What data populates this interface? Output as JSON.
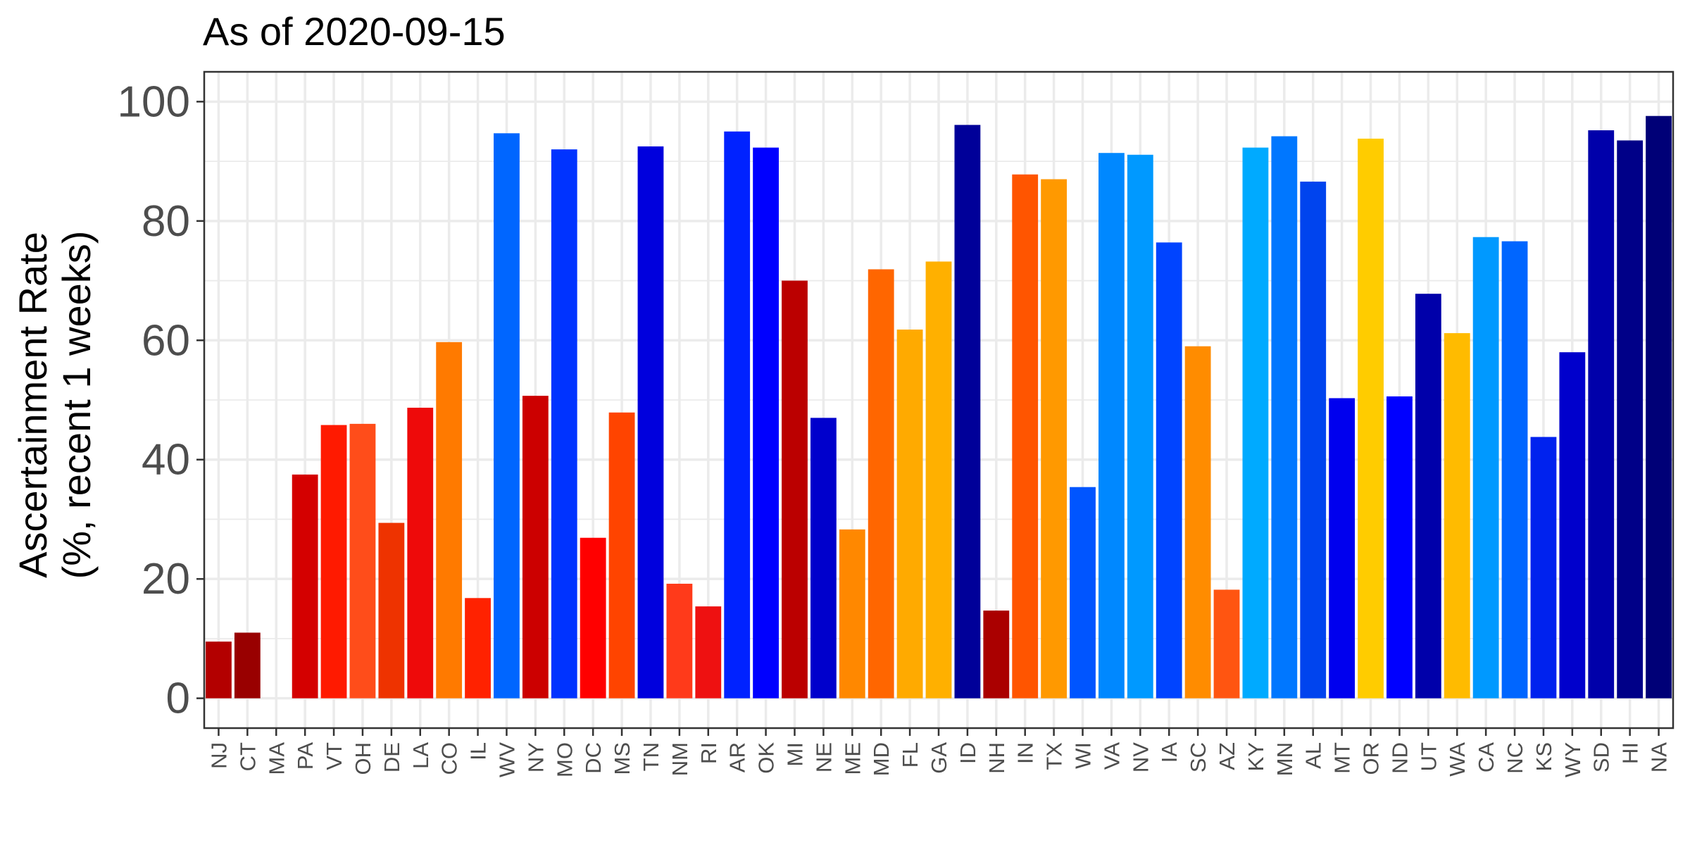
{
  "chart_data": {
    "type": "bar",
    "title": "As of 2020-09-15",
    "xlabel": "",
    "ylabel_lines": [
      "Ascertainment Rate",
      "(%, recent 1 weeks)"
    ],
    "ylim": [
      -5,
      105
    ],
    "yticks": [
      0,
      20,
      40,
      60,
      80,
      100
    ],
    "yminor": [
      10,
      30,
      50,
      70,
      90
    ],
    "grid": true,
    "categories": [
      "NJ",
      "CT",
      "MA",
      "PA",
      "VT",
      "OH",
      "DE",
      "LA",
      "CO",
      "IL",
      "WV",
      "NY",
      "MO",
      "DC",
      "MS",
      "TN",
      "NM",
      "RI",
      "AR",
      "OK",
      "MI",
      "NE",
      "ME",
      "MD",
      "FL",
      "GA",
      "ID",
      "NH",
      "IN",
      "TX",
      "WI",
      "VA",
      "NV",
      "IA",
      "SC",
      "AZ",
      "KY",
      "MN",
      "AL",
      "MT",
      "OR",
      "ND",
      "UT",
      "WA",
      "CA",
      "NC",
      "KS",
      "WY",
      "SD",
      "HI",
      "NA"
    ],
    "values": [
      9.5,
      11,
      0,
      37.5,
      45.8,
      46,
      29.4,
      48.7,
      59.7,
      16.8,
      94.7,
      50.7,
      92,
      26.9,
      47.9,
      92.5,
      19.2,
      15.4,
      95,
      92.3,
      70,
      47,
      28.3,
      71.9,
      61.8,
      73.2,
      96.1,
      14.7,
      87.8,
      87,
      35.4,
      91.4,
      91.1,
      76.4,
      59,
      18.2,
      92.3,
      94.2,
      86.6,
      50.3,
      93.8,
      50.6,
      67.8,
      61.2,
      77.3,
      76.6,
      43.8,
      58,
      95.2,
      93.5,
      97.6
    ],
    "colors": [
      "#b30000",
      "#990000",
      "#cc0000",
      "#d40000",
      "#ff1a00",
      "#ff4d1a",
      "#ee3300",
      "#ee0a0a",
      "#ff7a00",
      "#ff2200",
      "#0066ff",
      "#cc0000",
      "#0033ff",
      "#ff0000",
      "#ff4400",
      "#0000dd",
      "#ff3a1a",
      "#ee1111",
      "#0022ff",
      "#0000ff",
      "#bb0000",
      "#0000cc",
      "#ff8800",
      "#ff6600",
      "#ffaa00",
      "#ffb000",
      "#000099",
      "#aa0000",
      "#ff5500",
      "#ff9900",
      "#0055ff",
      "#0088ff",
      "#0099ff",
      "#0044ff",
      "#ff8c00",
      "#ff5511",
      "#00aaff",
      "#0077ff",
      "#0044ee",
      "#0000ee",
      "#ffcc00",
      "#0000ff",
      "#0000aa",
      "#ffbb00",
      "#0099ff",
      "#0066ff",
      "#0022ee",
      "#0000cc",
      "#0000aa",
      "#000088",
      "#000077"
    ]
  }
}
